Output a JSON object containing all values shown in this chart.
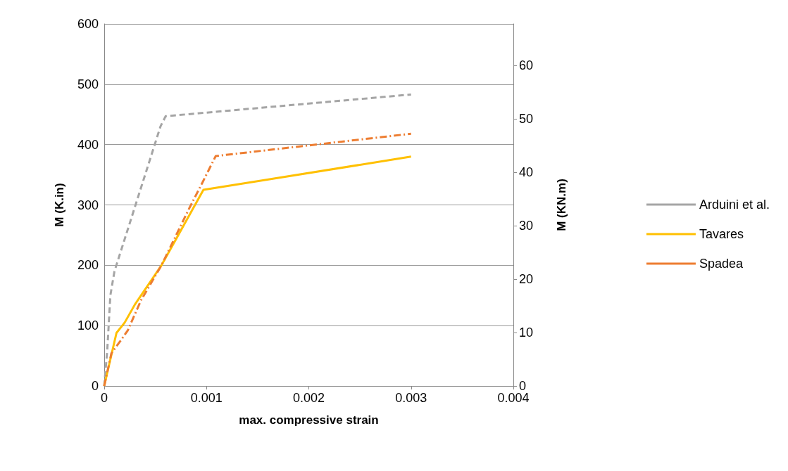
{
  "chart_data": {
    "type": "line",
    "xlabel": "max. compressive strain",
    "ylabel": "M (K.in)",
    "y2label": "M (KN.m)",
    "xlim": [
      0,
      0.004
    ],
    "xticks": [
      0,
      0.001,
      0.002,
      0.003,
      0.004
    ],
    "ylim": [
      0,
      600
    ],
    "yticks": [
      0,
      100,
      200,
      300,
      400,
      500,
      600
    ],
    "y2lim": [
      0,
      67.79
    ],
    "y2ticks": [
      0,
      10,
      20,
      30,
      40,
      50,
      60
    ],
    "grid": "y",
    "legend": "right",
    "marker": "none",
    "series": [
      {
        "name": "Arduini et al.",
        "color": "#a5a5a5",
        "line_style": "dashed",
        "x": [
          0,
          3e-05,
          6e-05,
          0.0001,
          0.00055,
          0.0006,
          0.003
        ],
        "values": [
          0,
          60,
          150,
          190,
          430,
          447,
          483
        ]
      },
      {
        "name": "Tavares",
        "color": "#ffc000",
        "line_style": "solid",
        "x": [
          0,
          0.00012,
          0.0002,
          0.0003,
          0.00056,
          0.00097,
          0.003
        ],
        "values": [
          0,
          88,
          105,
          135,
          200,
          325,
          380
        ]
      },
      {
        "name": "Spadea",
        "color": "#ed7d31",
        "line_style": "dashdot",
        "x": [
          0,
          7e-05,
          0.00016,
          0.00023,
          0.00036,
          0.00056,
          0.00083,
          0.00096,
          0.00109,
          0.003
        ],
        "values": [
          0,
          54,
          75,
          92,
          142,
          200,
          294,
          337,
          381,
          418
        ]
      }
    ]
  }
}
